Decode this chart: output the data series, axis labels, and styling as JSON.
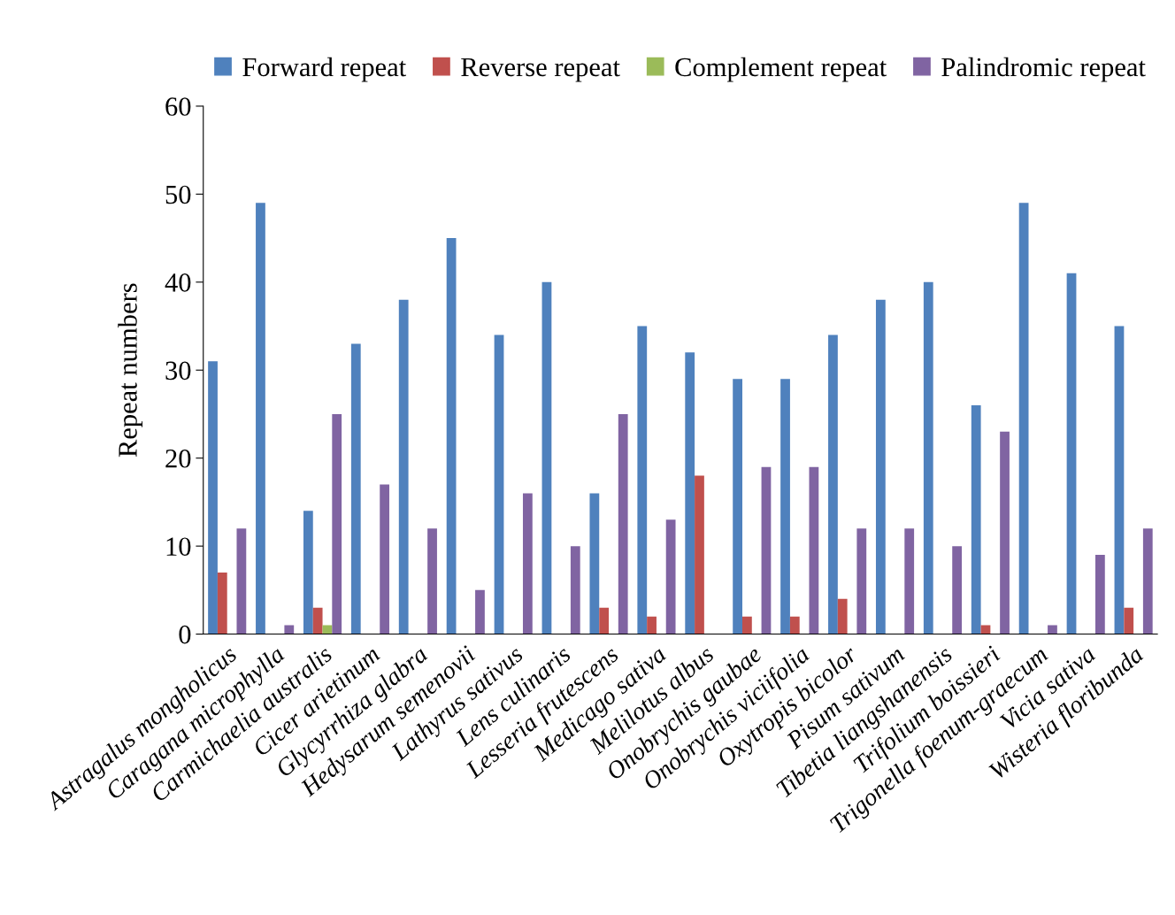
{
  "chart_data": {
    "type": "bar",
    "ylabel": "Repeat numbers",
    "categories": [
      "Astragalus mongholicus",
      "Caragana microphylla",
      "Carmichaelia australis",
      "Cicer arietinum",
      "Glycyrrhiza glabra",
      "Hedysarum semenovii",
      "Lathyrus sativus",
      "Lens culinaris",
      "Lesseria frutescens",
      "Medicago sativa",
      "Melilotus albus",
      "Onobrychis gaubae",
      "Onobrychis viciifolia",
      "Oxytropis bicolor",
      "Pisum sativum",
      "Tibetia liangshanensis",
      "Trifolium boissieri",
      "Trigonella foenum-graecum",
      "Vicia sativa",
      "Wisteria floribunda"
    ],
    "series": [
      {
        "name": "Forward repeat",
        "color": "#4f81bd",
        "values": [
          31,
          49,
          14,
          33,
          38,
          45,
          34,
          40,
          16,
          35,
          32,
          29,
          29,
          34,
          38,
          40,
          26,
          49,
          41,
          35
        ]
      },
      {
        "name": "Reverse repeat",
        "color": "#c0504d",
        "values": [
          7,
          0,
          3,
          0,
          0,
          0,
          0,
          0,
          3,
          2,
          18,
          2,
          2,
          4,
          0,
          0,
          1,
          0,
          0,
          3
        ]
      },
      {
        "name": "Complement repeat",
        "color": "#9bbb59",
        "values": [
          0,
          0,
          1,
          0,
          0,
          0,
          0,
          0,
          0,
          0,
          0,
          0,
          0,
          0,
          0,
          0,
          0,
          0,
          0,
          0
        ]
      },
      {
        "name": "Palindromic repeat",
        "color": "#8064a2",
        "values": [
          12,
          1,
          25,
          17,
          12,
          5,
          16,
          10,
          25,
          13,
          0,
          19,
          19,
          12,
          12,
          10,
          23,
          1,
          9,
          12
        ]
      }
    ],
    "ylim": [
      0,
      60
    ],
    "yticks": [
      0,
      10,
      20,
      30,
      40,
      50,
      60
    ],
    "grid": false,
    "legend": "top"
  }
}
